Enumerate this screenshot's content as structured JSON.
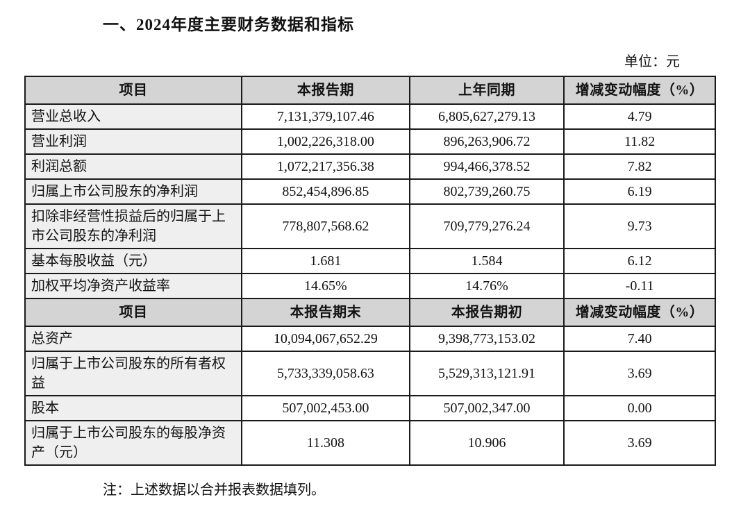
{
  "report": {
    "title": "一、2024年度主要财务数据和指标",
    "unit_label": "单位：元",
    "footnote": "注：上述数据以合并报表数据填列。"
  },
  "table1": {
    "headers": [
      "项目",
      "本报告期",
      "上年同期",
      "增减变动幅度（%）"
    ],
    "rows": [
      {
        "item": "营业总收入",
        "current": "7,131,379,107.46",
        "prior": "6,805,627,279.13",
        "change": "4.79"
      },
      {
        "item": "营业利润",
        "current": "1,002,226,318.00",
        "prior": "896,263,906.72",
        "change": "11.82"
      },
      {
        "item": "利润总额",
        "current": "1,072,217,356.38",
        "prior": "994,466,378.52",
        "change": "7.82"
      },
      {
        "item": "归属上市公司股东的净利润",
        "current": "852,454,896.85",
        "prior": "802,739,260.75",
        "change": "6.19"
      },
      {
        "item": "扣除非经营性损益后的归属于上市公司股东的净利润",
        "current": "778,807,568.62",
        "prior": "709,779,276.24",
        "change": "9.73"
      },
      {
        "item": "基本每股收益（元）",
        "current": "1.681",
        "prior": "1.584",
        "change": "6.12"
      },
      {
        "item": "加权平均净资产收益率",
        "current": "14.65%",
        "prior": "14.76%",
        "change": "-0.11"
      }
    ]
  },
  "table2": {
    "headers": [
      "项目",
      "本报告期末",
      "本报告期初",
      "增减变动幅度（%）"
    ],
    "rows": [
      {
        "item": "总资产",
        "current": "10,094,067,652.29",
        "prior": "9,398,773,153.02",
        "change": "7.40"
      },
      {
        "item": "归属于上市公司股东的所有者权益",
        "current": "5,733,339,058.63",
        "prior": "5,529,313,121.91",
        "change": "3.69"
      },
      {
        "item": "股本",
        "current": "507,002,453.00",
        "prior": "507,002,347.00",
        "change": "0.00"
      },
      {
        "item": "归属于上市公司股东的每股净资产（元）",
        "current": "11.308",
        "prior": "10.906",
        "change": "3.69"
      }
    ]
  },
  "colors": {
    "header_background": "#d4d4d4",
    "item_column_background": "#efefef",
    "border": "#1a1a1a",
    "text": "#121212",
    "page_background": "#ffffff"
  }
}
